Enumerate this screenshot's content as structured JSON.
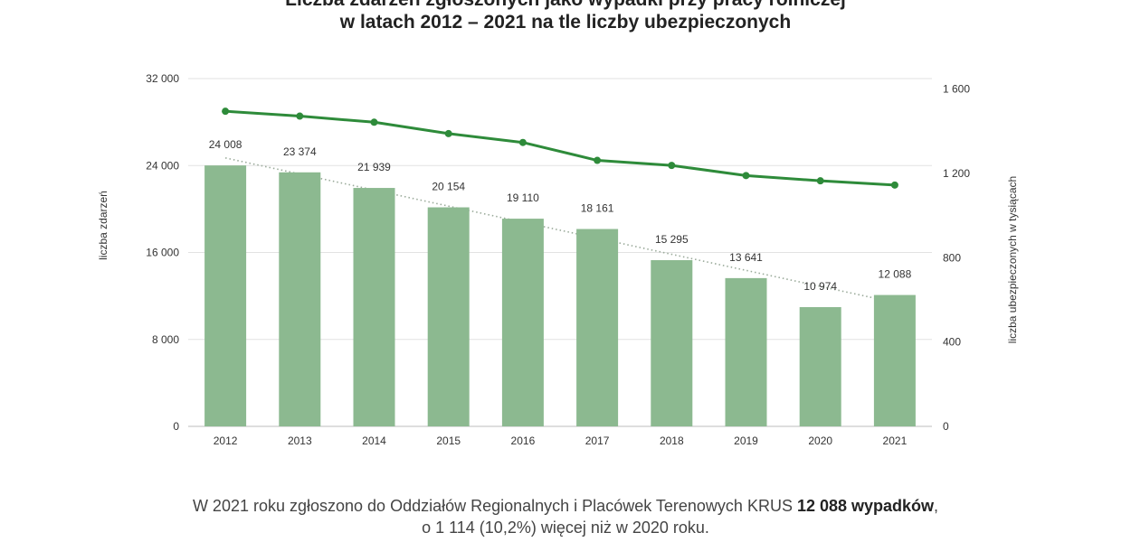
{
  "title": {
    "line1": "Liczba zdarzeń zgłoszonych jako wypadki przy pracy rolniczej",
    "line2": "w latach 2012 – 2021 na tle liczby ubezpieczonych"
  },
  "caption": {
    "line1_before": "W 2021 roku zgłoszono do Oddziałów Regionalnych i Placówek Terenowych KRUS ",
    "line1_bold": "12 088 wypadków",
    "line1_after": ",",
    "line2": "o 1 114 (10,2%) więcej niż w 2020 roku."
  },
  "colors": {
    "bar": "#8cb990",
    "line": "#2e8b3a",
    "trend": "#9aaa9a",
    "grid": "#e2e2e2"
  },
  "chart_data": {
    "type": "bar",
    "categories": [
      "2012",
      "2013",
      "2014",
      "2015",
      "2016",
      "2017",
      "2018",
      "2019",
      "2020",
      "2021"
    ],
    "series": [
      {
        "type": "bar",
        "axis": "left",
        "values": [
          24008,
          23374,
          21939,
          20154,
          19110,
          18161,
          15295,
          13641,
          10974,
          12088
        ],
        "value_labels": [
          "24 008",
          "23 374",
          "21 939",
          "20 154",
          "19 110",
          "18 161",
          "15 295",
          "13 641",
          "10 974",
          "12 088"
        ]
      },
      {
        "type": "line",
        "axis": "right",
        "values": [
          1495,
          1472,
          1443,
          1389,
          1347,
          1262,
          1238,
          1190,
          1165,
          1145
        ]
      },
      {
        "type": "trendline",
        "axis": "left",
        "style": "dotted",
        "start": 24700,
        "end": 11400
      }
    ],
    "ylabel": "liczba zdarzeń",
    "y2label": "liczba ubezpieczonych w tysiącach",
    "ylim": [
      0,
      32000
    ],
    "y2lim": [
      0,
      1650
    ],
    "yticks": [
      0,
      8000,
      16000,
      24000,
      32000
    ],
    "ytick_labels": [
      "0",
      "8 000",
      "16 000",
      "24 000",
      "32 000"
    ],
    "y2ticks": [
      0,
      400,
      800,
      1200,
      1600
    ],
    "y2tick_labels": [
      "0",
      "400",
      "800",
      "1 200",
      "1 600"
    ],
    "grid": true,
    "legend": "none"
  }
}
